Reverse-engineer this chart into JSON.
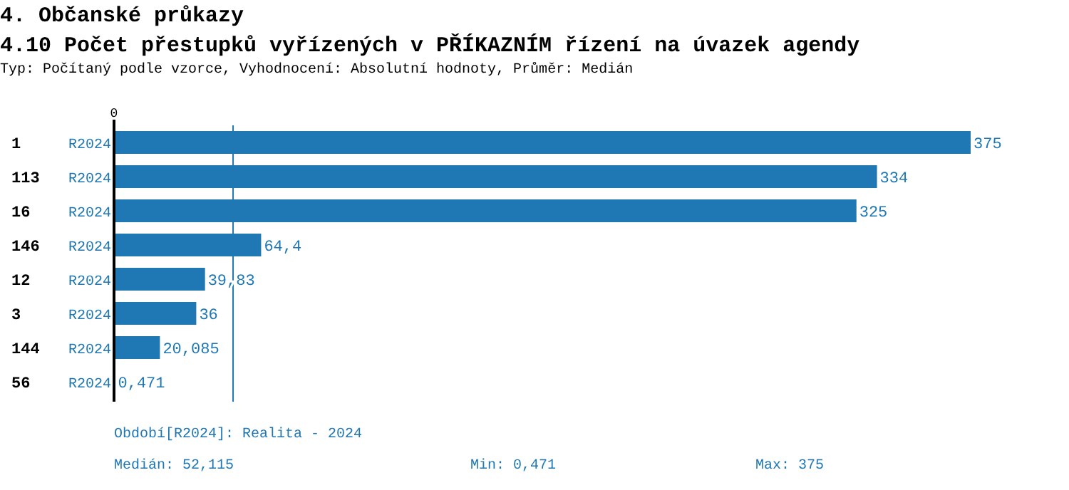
{
  "chart_data": {
    "type": "bar",
    "orientation": "horizontal",
    "title": "4. Občanské průkazy",
    "subtitle": "4.10 Počet přestupků vyřízených v PŘÍKAZNÍM řízení na úvazek agendy",
    "categories": [
      "1",
      "113",
      "16",
      "146",
      "12",
      "3",
      "144",
      "56"
    ],
    "series": [
      {
        "name": "R2024",
        "color": "#1f77b4",
        "values": [
          375,
          334,
          325,
          64.4,
          39.83,
          36,
          20.085,
          0.471
        ],
        "value_labels": [
          "375",
          "334",
          "325",
          "64,4",
          "39,83",
          "36",
          "20,085",
          "0,471"
        ]
      }
    ],
    "ref_lines": [
      {
        "axis": "x",
        "value": 52.115,
        "color": "#1f77b4"
      }
    ],
    "annotations": [
      "Typ: Počítaný podle vzorce, Vyhodnocení: Absolutní hodnoty, Průměr: Medián",
      "0",
      "Období[R2024]: Realita - 2024",
      "Medián: 52,115",
      "Min: 0,471",
      "Max: 375"
    ]
  }
}
